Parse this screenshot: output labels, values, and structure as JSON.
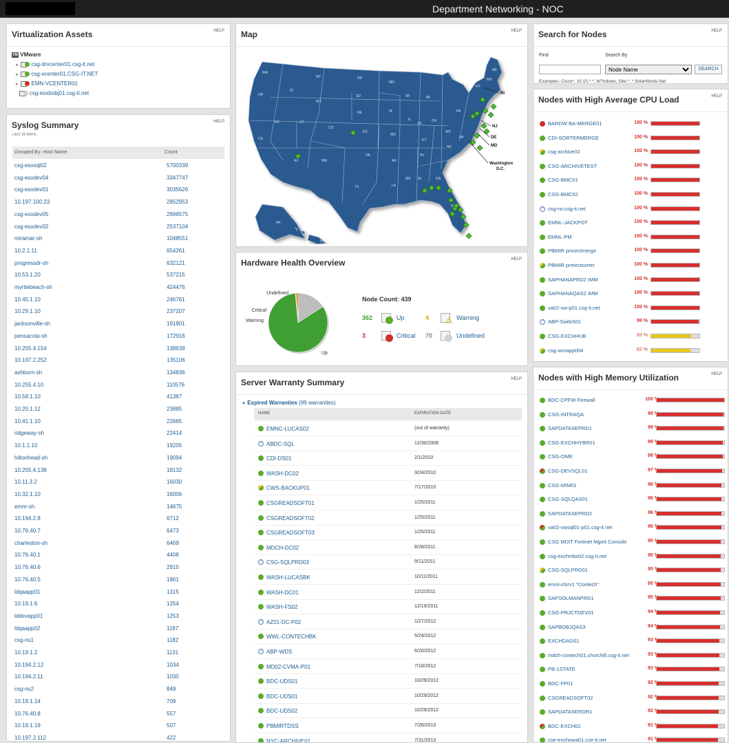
{
  "header": {
    "title": "Department Networking - NOC"
  },
  "help_label": "HELP",
  "virtualization": {
    "title": "Virtualization Assets",
    "root": "VMware",
    "items": [
      {
        "name": "csg-drvcenter01.csg-it.net",
        "status": "green"
      },
      {
        "name": "csg-vcenter01.CSG-IT.NET",
        "status": "green"
      },
      {
        "name": "EMN-VCENTER01",
        "status": "red"
      },
      {
        "name": "csg-esxbobj01.csg-it.net",
        "status": "gray"
      }
    ]
  },
  "syslog": {
    "title": "Syslog Summary",
    "subtitle": "LAST 30 DAYS.",
    "col_host": "Grouped By: Host Name",
    "col_count": "Count",
    "rows": [
      [
        "csg-esxsql02",
        "5700339"
      ],
      [
        "csg-esxdev04",
        "3347747"
      ],
      [
        "csg-esxdev01",
        "3035626"
      ],
      [
        "10.197.100.23",
        "2852953"
      ],
      [
        "csg-esxdev05",
        "2696575"
      ],
      [
        "csg-esxdev02",
        "2537104"
      ],
      [
        "miramar-sh",
        "1048551"
      ],
      [
        "10.2.1.11",
        "654261"
      ],
      [
        "progressdr-sh",
        "632121"
      ],
      [
        "10.53.1.20",
        "537215"
      ],
      [
        "myrtlebeach-sh",
        "424476"
      ],
      [
        "10.45.1.10",
        "246761"
      ],
      [
        "10.29.1.10",
        "237207"
      ],
      [
        "jacksonville-sh",
        "191901"
      ],
      [
        "pensacola-sh",
        "172916"
      ],
      [
        "10.255.4.154",
        "138639"
      ],
      [
        "10.197.2.252",
        "135106"
      ],
      [
        "ashburn-sh",
        "134836"
      ],
      [
        "10.255.4.10",
        "110576"
      ],
      [
        "10.58.1.10",
        "41387"
      ],
      [
        "10.20.1.12",
        "23885"
      ],
      [
        "10.41.1.10",
        "22665"
      ],
      [
        "ridgeway-sh",
        "22414"
      ],
      [
        "10.1.1.10",
        "19205"
      ],
      [
        "hiltonhead-sh",
        "19094"
      ],
      [
        "10.255.4.138",
        "18132"
      ],
      [
        "10.11.3.2",
        "16030"
      ],
      [
        "10.32.1.10",
        "16006"
      ],
      [
        "emnr-sh",
        "14675"
      ],
      [
        "10.194.2.8",
        "6712"
      ],
      [
        "10.76.40.7",
        "6473"
      ],
      [
        "charleston-sh",
        "6469"
      ],
      [
        "10.76.40.1",
        "4408"
      ],
      [
        "10.76.40.6",
        "2910"
      ],
      [
        "10.76.40.5",
        "1861"
      ],
      [
        "ldqaapp01",
        "1315"
      ],
      [
        "10.19.1.6",
        "1254"
      ],
      [
        "lddevapp01",
        "1253"
      ],
      [
        "ldqaapp02",
        "1187"
      ],
      [
        "csg-ns1",
        "1182"
      ],
      [
        "10.19.1.2",
        "1131"
      ],
      [
        "10.194.2.12",
        "1034"
      ],
      [
        "10.194.2.11",
        "1030"
      ],
      [
        "csg-ns2",
        "849"
      ],
      [
        "10.19.1.14",
        "709"
      ],
      [
        "10.76.40.8",
        "557"
      ],
      [
        "10.19.1.19",
        "507"
      ],
      [
        "10.197.2.112",
        "422"
      ]
    ]
  },
  "map": {
    "title": "Map",
    "states": [
      "WA",
      "MT",
      "ND",
      "MN",
      "OR",
      "ID",
      "SD",
      "WI",
      "NY",
      "WY",
      "NE",
      "IA",
      "IL",
      "MI",
      "OH",
      "PA",
      "NV",
      "UT",
      "CO",
      "KS",
      "MO",
      "KY",
      "CA",
      "AZ",
      "NM",
      "OK",
      "AR",
      "TN",
      "NC",
      "TX",
      "LA",
      "MS",
      "AL",
      "GA",
      "SC",
      "FL",
      "AK",
      "HI",
      "IN",
      "WV",
      "VA",
      "ME",
      "VT",
      "NH"
    ],
    "callouts": [
      "RI",
      "NJ",
      "DE",
      "MD",
      "Washington D.C."
    ]
  },
  "hardware": {
    "title": "Hardware Health Overview",
    "node_count_label": "Node Count: 439",
    "pie": [
      {
        "label": "Up",
        "value": 362,
        "color": "#3f9f32"
      },
      {
        "label": "Warning",
        "value": 4,
        "color": "#e6c229"
      },
      {
        "label": "Critical",
        "value": 3,
        "color": "#d0302a"
      },
      {
        "label": "Undefined",
        "value": 70,
        "color": "#bdbdbd"
      }
    ],
    "legend": [
      {
        "count": "362",
        "label": "Up",
        "count_color": "#3f9f32"
      },
      {
        "count": "4",
        "label": "Warning",
        "count_color": "#d6a400"
      },
      {
        "count": "3",
        "label": "Critical",
        "count_color": "#d0302a"
      },
      {
        "count": "70",
        "label": "Undefined",
        "count_color": "#888888"
      }
    ]
  },
  "warranty": {
    "title": "Server Warranty Summary",
    "group_label": "Expired Warranties",
    "group_count": "(99 warranties)",
    "col_name": "NAME",
    "col_date": "EXPIRATION DATE",
    "rows": [
      [
        "EMNC-LUCAS02",
        "(out of warranty)",
        "g"
      ],
      [
        "ABDC-SQL",
        "12/30/2008",
        "q"
      ],
      [
        "CDI-DS01",
        "2/1/2010",
        "g"
      ],
      [
        "WASH-DC02",
        "3/24/2010",
        "g"
      ],
      [
        "CWS-BACKUP01",
        "7/17/2010",
        "gy"
      ],
      [
        "CSGREADSOFT01",
        "1/25/2011",
        "g"
      ],
      [
        "CSGREADSOFT02",
        "1/25/2011",
        "g"
      ],
      [
        "CSGREADSOFT03",
        "1/25/2011",
        "g"
      ],
      [
        "MDCH-DC02",
        "8/28/2011",
        "g"
      ],
      [
        "CSG-SQLPRD03",
        "9/11/2011",
        "q"
      ],
      [
        "WASH-LUCASBK",
        "10/11/2011",
        "g"
      ],
      [
        "WASH-DC01",
        "12/2/2011",
        "g"
      ],
      [
        "WASH-FS02",
        "12/19/2011",
        "g"
      ],
      [
        "AZ01-DC-P02",
        "1/27/2012",
        "q"
      ],
      [
        "WWL-CONTECHBK",
        "5/24/2012",
        "g"
      ],
      [
        "ABP-WDS",
        "6/20/2012",
        "q"
      ],
      [
        "MD02-CVMA-P01",
        "7/18/2012",
        "g"
      ],
      [
        "BDC-UDS01",
        "10/29/2012",
        "g"
      ],
      [
        "BDC-UDS01",
        "10/29/2012",
        "g"
      ],
      [
        "BDC-UDS02",
        "10/29/2012",
        "g"
      ],
      [
        "PBMIRTDSS",
        "7/28/2013",
        "g"
      ],
      [
        "NYC-ARCHIVE01",
        "7/31/2013",
        "g"
      ]
    ]
  },
  "search": {
    "title": "Search for Nodes",
    "find_label": "Find",
    "by_label": "Search By",
    "by_value": "Node Name",
    "button": "SEARCH",
    "examples": "Examples: Cisco*, 10.15.*.*, W?ndows, Site-*, *.SolarWinds.Net"
  },
  "cpu": {
    "title": "Nodes with High Average CPU Load",
    "rows": [
      [
        "BARDW BA-MERGE01",
        "100 %",
        1.0,
        "r"
      ],
      [
        "CDI-SORTERMERGE",
        "100 %",
        1.0,
        "g"
      ],
      [
        "csg-archive02",
        "100 %",
        1.0,
        "gy"
      ],
      [
        "CSG-ARCHIVETEST",
        "100 %",
        1.0,
        "g"
      ],
      [
        "CSG-BMC01",
        "100 %",
        1.0,
        "g"
      ],
      [
        "CSG-BMC02",
        "100 %",
        1.0,
        "g"
      ],
      [
        "csg-rsi.csg-it.net",
        "100 %",
        1.0,
        "q"
      ],
      [
        "EMNL-JACKPOT",
        "100 %",
        1.0,
        "g"
      ],
      [
        "EMNL-PM",
        "100 %",
        1.0,
        "g"
      ],
      [
        "PBMIR prmirctmerge",
        "100 %",
        1.0,
        "g"
      ],
      [
        "PBMIR prmirctsorter",
        "100 %",
        1.0,
        "gy"
      ],
      [
        "SAPHANAPRD2 IMM",
        "100 %",
        1.0,
        "g"
      ],
      [
        "SAPHANAQAS2 IMM",
        "100 %",
        1.0,
        "g"
      ],
      [
        "va02-sw-p01.csg-it.net",
        "100 %",
        1.0,
        "g"
      ],
      [
        "ABP-Switch01",
        "99 %",
        0.99,
        "q"
      ],
      [
        "CSG-EXCHHUB",
        "83 %",
        0.83,
        "g"
      ],
      [
        "csg-xenapp004",
        "82 %",
        0.82,
        "gy"
      ]
    ]
  },
  "memory": {
    "title": "Nodes with High Memory Utilization",
    "rows": [
      [
        "BDC-CPFW Firewall",
        "100 %",
        1.0,
        "g"
      ],
      [
        "CSG-INTRAQA",
        "99 %",
        0.99,
        "g"
      ],
      [
        "SAPDATASEPRD1",
        "99 %",
        0.99,
        "g"
      ],
      [
        "CSG-EXCHHYBR01",
        "98 %",
        0.98,
        "g"
      ],
      [
        "CSG-OME",
        "98 %",
        0.98,
        "g"
      ],
      [
        "CSG-DEVSQL01",
        "97 %",
        0.97,
        "gr"
      ],
      [
        "CSG-MIM01",
        "96 %",
        0.96,
        "g"
      ],
      [
        "CSG-SQLQAS01",
        "96 %",
        0.96,
        "g"
      ],
      [
        "SAPDATASEPRD2",
        "96 %",
        0.96,
        "g"
      ],
      [
        "va02-swsql01-p01.csg-it.net",
        "96 %",
        0.96,
        "gr"
      ],
      [
        "CSG MDIT Fortinet Mgmt Console",
        "95 %",
        0.95,
        "g"
      ],
      [
        "csg-exchmbx02.csg-it.net",
        "95 %",
        0.95,
        "g"
      ],
      [
        "CSG-SQLPRD01",
        "95 %",
        0.95,
        "gy"
      ],
      [
        "emnl-ctsrv1 \"Contech\"",
        "95 %",
        0.95,
        "g"
      ],
      [
        "SAPSOLMANPRD1",
        "95 %",
        0.95,
        "g"
      ],
      [
        "CSG-PRJCTDEV01",
        "94 %",
        0.94,
        "g"
      ],
      [
        "SAPBOBJQAS3",
        "94 %",
        0.94,
        "g"
      ],
      [
        "EXCHDAG01",
        "93 %",
        0.93,
        "g"
      ],
      [
        "mdch-contech01.churchill.csg-it.net",
        "93 %",
        0.93,
        "g"
      ],
      [
        "PB-1STATE",
        "93 %",
        0.93,
        "g"
      ],
      [
        "BDC-FP01",
        "92 %",
        0.92,
        "g"
      ],
      [
        "CSGREADSOFT02",
        "92 %",
        0.92,
        "g"
      ],
      [
        "SAPDATASERDR1",
        "92 %",
        0.92,
        "g"
      ],
      [
        "BDC-EXCH02",
        "91 %",
        0.91,
        "gr"
      ],
      [
        "cse-exchowa01.cse-it.net",
        "91 %",
        0.91,
        "g"
      ]
    ]
  }
}
